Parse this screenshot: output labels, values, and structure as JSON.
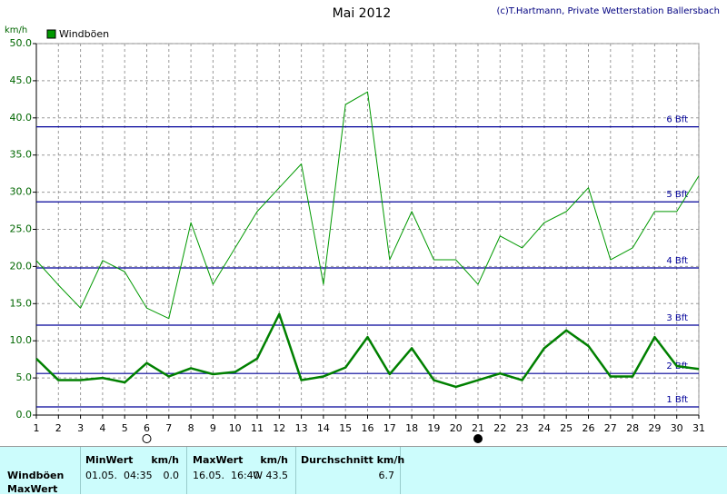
{
  "chart_data": {
    "type": "line",
    "title": "Mai 2012",
    "credit": "(c)T.Hartmann, Private Wetterstation Ballersbach",
    "y_label": "km/h",
    "x": [
      1,
      2,
      3,
      4,
      5,
      6,
      7,
      8,
      9,
      10,
      11,
      12,
      13,
      14,
      15,
      16,
      17,
      18,
      19,
      20,
      21,
      22,
      23,
      24,
      25,
      26,
      27,
      28,
      29,
      30,
      31
    ],
    "series": [
      {
        "name": "Windböen",
        "color": "#009900",
        "width": 1,
        "values": [
          20.8,
          17.5,
          14.4,
          20.8,
          19.3,
          14.4,
          13.0,
          25.9,
          17.6,
          22.5,
          27.4,
          30.6,
          33.8,
          17.6,
          41.8,
          43.5,
          20.9,
          27.4,
          20.9,
          20.9,
          17.6,
          24.1,
          22.5,
          25.9,
          27.4,
          30.6,
          20.9,
          22.5,
          27.4,
          27.4,
          32.2
        ]
      },
      {
        "color": "#008000",
        "width": 2.5,
        "values": [
          7.6,
          4.7,
          4.7,
          5.0,
          4.4,
          7.0,
          5.2,
          6.3,
          5.5,
          5.8,
          7.6,
          13.6,
          4.7,
          5.2,
          6.4,
          10.5,
          5.5,
          9.0,
          4.7,
          3.8,
          4.7,
          5.6,
          4.7,
          9.0,
          11.4,
          9.3,
          5.2,
          5.2,
          10.5,
          6.6,
          6.2
        ]
      }
    ],
    "xlim": [
      1,
      31
    ],
    "xticks": [
      1,
      2,
      3,
      4,
      5,
      6,
      7,
      8,
      9,
      10,
      11,
      12,
      13,
      14,
      15,
      16,
      17,
      18,
      19,
      20,
      21,
      22,
      23,
      24,
      25,
      26,
      27,
      28,
      29,
      30,
      31
    ],
    "ylim": [
      0,
      50
    ],
    "yticks": [
      {
        "value": 0,
        "label": "0.0"
      },
      {
        "value": 5,
        "label": "5.0"
      },
      {
        "value": 10,
        "label": "10.0"
      },
      {
        "value": 15,
        "label": "15.0"
      },
      {
        "value": 20,
        "label": "20.0"
      },
      {
        "value": 25,
        "label": "25.0"
      },
      {
        "value": 30,
        "label": "30.0"
      },
      {
        "value": 35,
        "label": "35.0"
      },
      {
        "value": 40,
        "label": "40.0"
      },
      {
        "value": 45,
        "label": "45.0"
      },
      {
        "value": 50,
        "label": "50.0"
      }
    ],
    "grid": true,
    "reference_lines": [
      {
        "value": 1.1,
        "label": "1 Bft"
      },
      {
        "value": 5.6,
        "label": "2 Bft"
      },
      {
        "value": 12.1,
        "label": "3 Bft"
      },
      {
        "value": 19.8,
        "label": "4 Bft"
      },
      {
        "value": 28.7,
        "label": "5 Bft"
      },
      {
        "value": 38.8,
        "label": "6 Bft"
      }
    ],
    "reference_color": "#000099",
    "markers": [
      {
        "x": 6,
        "filled": false
      },
      {
        "x": 21,
        "filled": true
      }
    ]
  },
  "table": {
    "headers": [
      "MinWert",
      "km/h",
      "MaxWert",
      "km/h",
      "Durchschnitt km/h"
    ],
    "rows": [
      [
        "Windböen",
        "01.05.  04:35",
        "0.0",
        "16.05.  16:40",
        "W 43.5",
        "6.7"
      ],
      [
        "MaxWert"
      ]
    ]
  }
}
